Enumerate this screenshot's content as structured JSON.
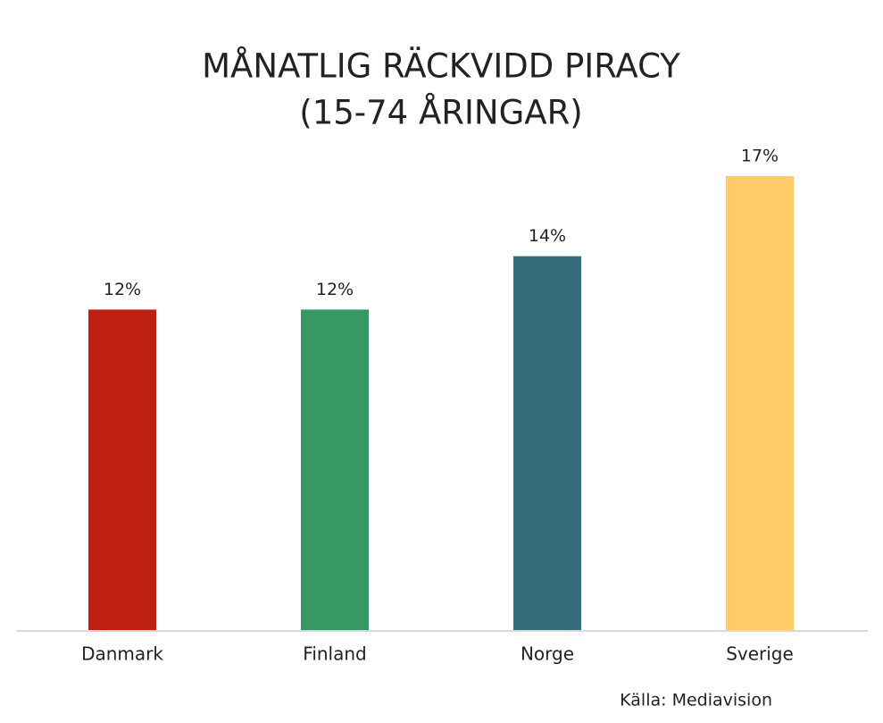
{
  "chart_data": {
    "type": "bar",
    "title": "MÅNATLIG RÄCKVIDD PIRACY",
    "subtitle": "(15-74 ÅRINGAR)",
    "categories": [
      "Danmark",
      "Finland",
      "Norge",
      "Sverige"
    ],
    "values": [
      12,
      12,
      14,
      17
    ],
    "value_labels": [
      "12%",
      "12%",
      "14%",
      "17%"
    ],
    "colors": [
      "#c01f13",
      "#379862",
      "#366d7c",
      "#fecb67"
    ],
    "source": "Källa: Mediavision"
  }
}
